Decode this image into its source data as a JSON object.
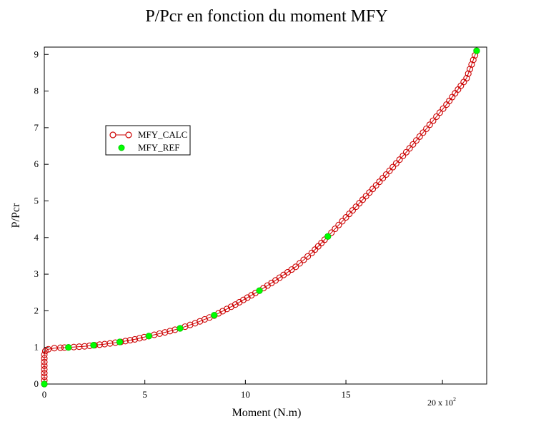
{
  "chart_data": {
    "type": "line",
    "title": "P/Pcr en fonction du moment MFY",
    "xlabel": "Moment (N.m)",
    "ylabel": "P/Pcr",
    "x_multiplier_label": "20 x 10",
    "x_multiplier_exponent": "2",
    "xlim": [
      0,
      22
    ],
    "ylim": [
      0,
      9.2
    ],
    "x_ticks": [
      0,
      5,
      10,
      15
    ],
    "x_tick_labels": [
      "0",
      "5",
      "10",
      "15"
    ],
    "y_ticks": [
      0,
      1,
      2,
      3,
      4,
      5,
      6,
      7,
      8,
      9
    ],
    "y_tick_labels": [
      "0",
      "1",
      "2",
      "3",
      "4",
      "5",
      "6",
      "7",
      "8",
      "9"
    ],
    "legend_position": "upper-left",
    "series": [
      {
        "name": "MFY_CALC",
        "style": "line-hollow-circle",
        "color": "#cc0000",
        "points": [
          [
            0,
            0
          ],
          [
            0,
            0.1
          ],
          [
            0,
            0.2
          ],
          [
            0,
            0.3
          ],
          [
            0,
            0.4
          ],
          [
            0,
            0.5
          ],
          [
            0,
            0.6
          ],
          [
            0,
            0.7
          ],
          [
            0,
            0.8
          ],
          [
            0.05,
            0.9
          ],
          [
            0.2,
            0.95
          ],
          [
            0.5,
            0.98
          ],
          [
            0.8,
            0.99
          ],
          [
            1.2,
            1.0
          ],
          [
            2.0,
            1.03
          ],
          [
            2.5,
            1.06
          ],
          [
            3.0,
            1.09
          ],
          [
            3.8,
            1.15
          ],
          [
            4.5,
            1.22
          ],
          [
            5.2,
            1.31
          ],
          [
            6.0,
            1.41
          ],
          [
            6.75,
            1.52
          ],
          [
            7.5,
            1.66
          ],
          [
            8.45,
            1.87
          ],
          [
            9.5,
            2.17
          ],
          [
            10.7,
            2.55
          ],
          [
            11.5,
            2.83
          ],
          [
            12.5,
            3.2
          ],
          [
            13.3,
            3.58
          ],
          [
            14.1,
            4.03
          ],
          [
            15.0,
            4.55
          ],
          [
            16.0,
            5.13
          ],
          [
            17.0,
            5.72
          ],
          [
            18.0,
            6.33
          ],
          [
            19.0,
            6.97
          ],
          [
            20.0,
            7.63
          ],
          [
            21.0,
            8.35
          ],
          [
            21.5,
            9.1
          ]
        ]
      },
      {
        "name": "MFY_REF",
        "style": "green-filled-dot",
        "color": "#00ff00",
        "points": [
          [
            0,
            0
          ],
          [
            1.2,
            1.0
          ],
          [
            2.45,
            1.06
          ],
          [
            3.75,
            1.15
          ],
          [
            5.2,
            1.31
          ],
          [
            6.75,
            1.52
          ],
          [
            8.45,
            1.88
          ],
          [
            10.7,
            2.55
          ],
          [
            14.1,
            4.03
          ],
          [
            21.5,
            9.1
          ]
        ]
      }
    ]
  }
}
